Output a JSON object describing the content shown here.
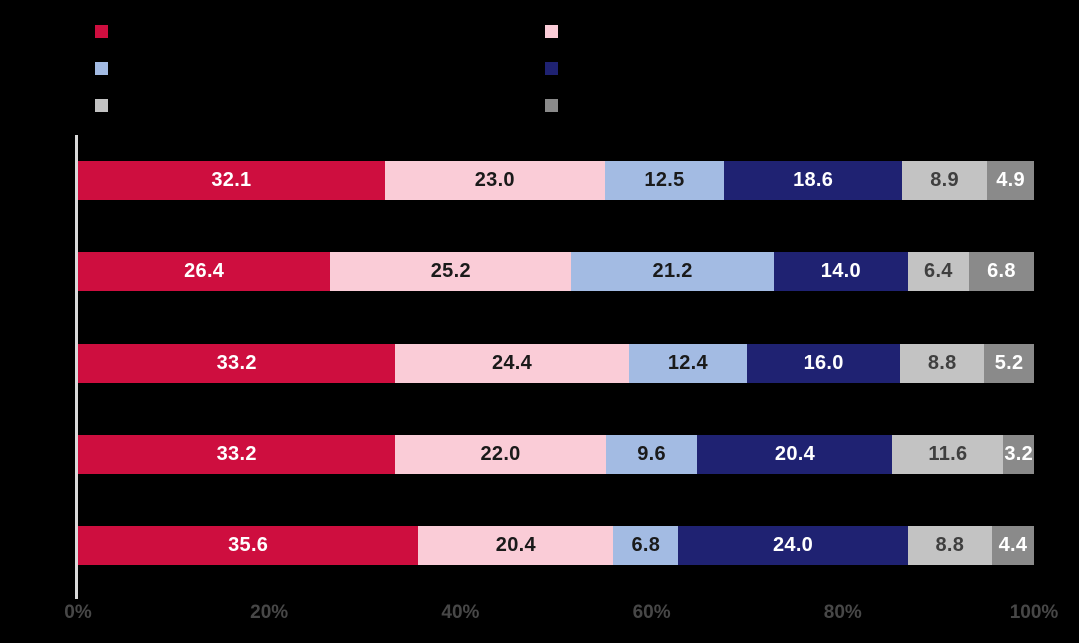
{
  "background_color": "#000000",
  "legend": {
    "columns": [
      {
        "items": [
          {
            "label": "",
            "color": "#CE0E3F"
          },
          {
            "label": "",
            "color": "#A3BBE3"
          },
          {
            "label": "",
            "color": "#C3C3C3"
          }
        ]
      },
      {
        "items": [
          {
            "label": "",
            "color": "#FACCD7"
          },
          {
            "label": "",
            "color": "#1F2272"
          },
          {
            "label": "",
            "color": "#8A8A8A"
          }
        ]
      }
    ]
  },
  "chart_data": {
    "type": "bar",
    "orientation": "horizontal",
    "stacked": true,
    "title": "",
    "xlabel": "",
    "ylabel": "",
    "xlim": [
      0,
      100
    ],
    "grid": false,
    "legend_position": "top",
    "categories": [
      "",
      "",
      "",
      "",
      ""
    ],
    "series": [
      {
        "name": "",
        "color": "#CE0E3F",
        "label_color": "#FFFFFF",
        "values": [
          32.1,
          26.4,
          33.2,
          33.2,
          35.6
        ]
      },
      {
        "name": "",
        "color": "#FACCD7",
        "label_color": "#1A1A1A",
        "values": [
          23.0,
          25.2,
          24.4,
          22.0,
          20.4
        ]
      },
      {
        "name": "",
        "color": "#A3BBE3",
        "label_color": "#1A1A1A",
        "values": [
          12.5,
          21.2,
          12.4,
          9.6,
          6.8
        ]
      },
      {
        "name": "",
        "color": "#1F2272",
        "label_color": "#FFFFFF",
        "values": [
          18.6,
          14.0,
          16.0,
          20.4,
          24.0
        ]
      },
      {
        "name": "",
        "color": "#C3C3C3",
        "label_color": "#3F3F3F",
        "values": [
          8.9,
          6.4,
          8.8,
          11.6,
          8.8
        ]
      },
      {
        "name": "",
        "color": "#8A8A8A",
        "label_color": "#FFFFFF",
        "values": [
          4.9,
          6.8,
          5.2,
          3.2,
          4.4
        ]
      }
    ],
    "value_labels": true,
    "value_label_decimals": 1,
    "x_ticks": [
      "0%",
      "20%",
      "40%",
      "60%",
      "80%",
      "100%"
    ],
    "x_tick_values": [
      0,
      20,
      40,
      60,
      80,
      100
    ],
    "axis_line_color": "#D9D9D9",
    "tick_label_color": "#474747"
  }
}
